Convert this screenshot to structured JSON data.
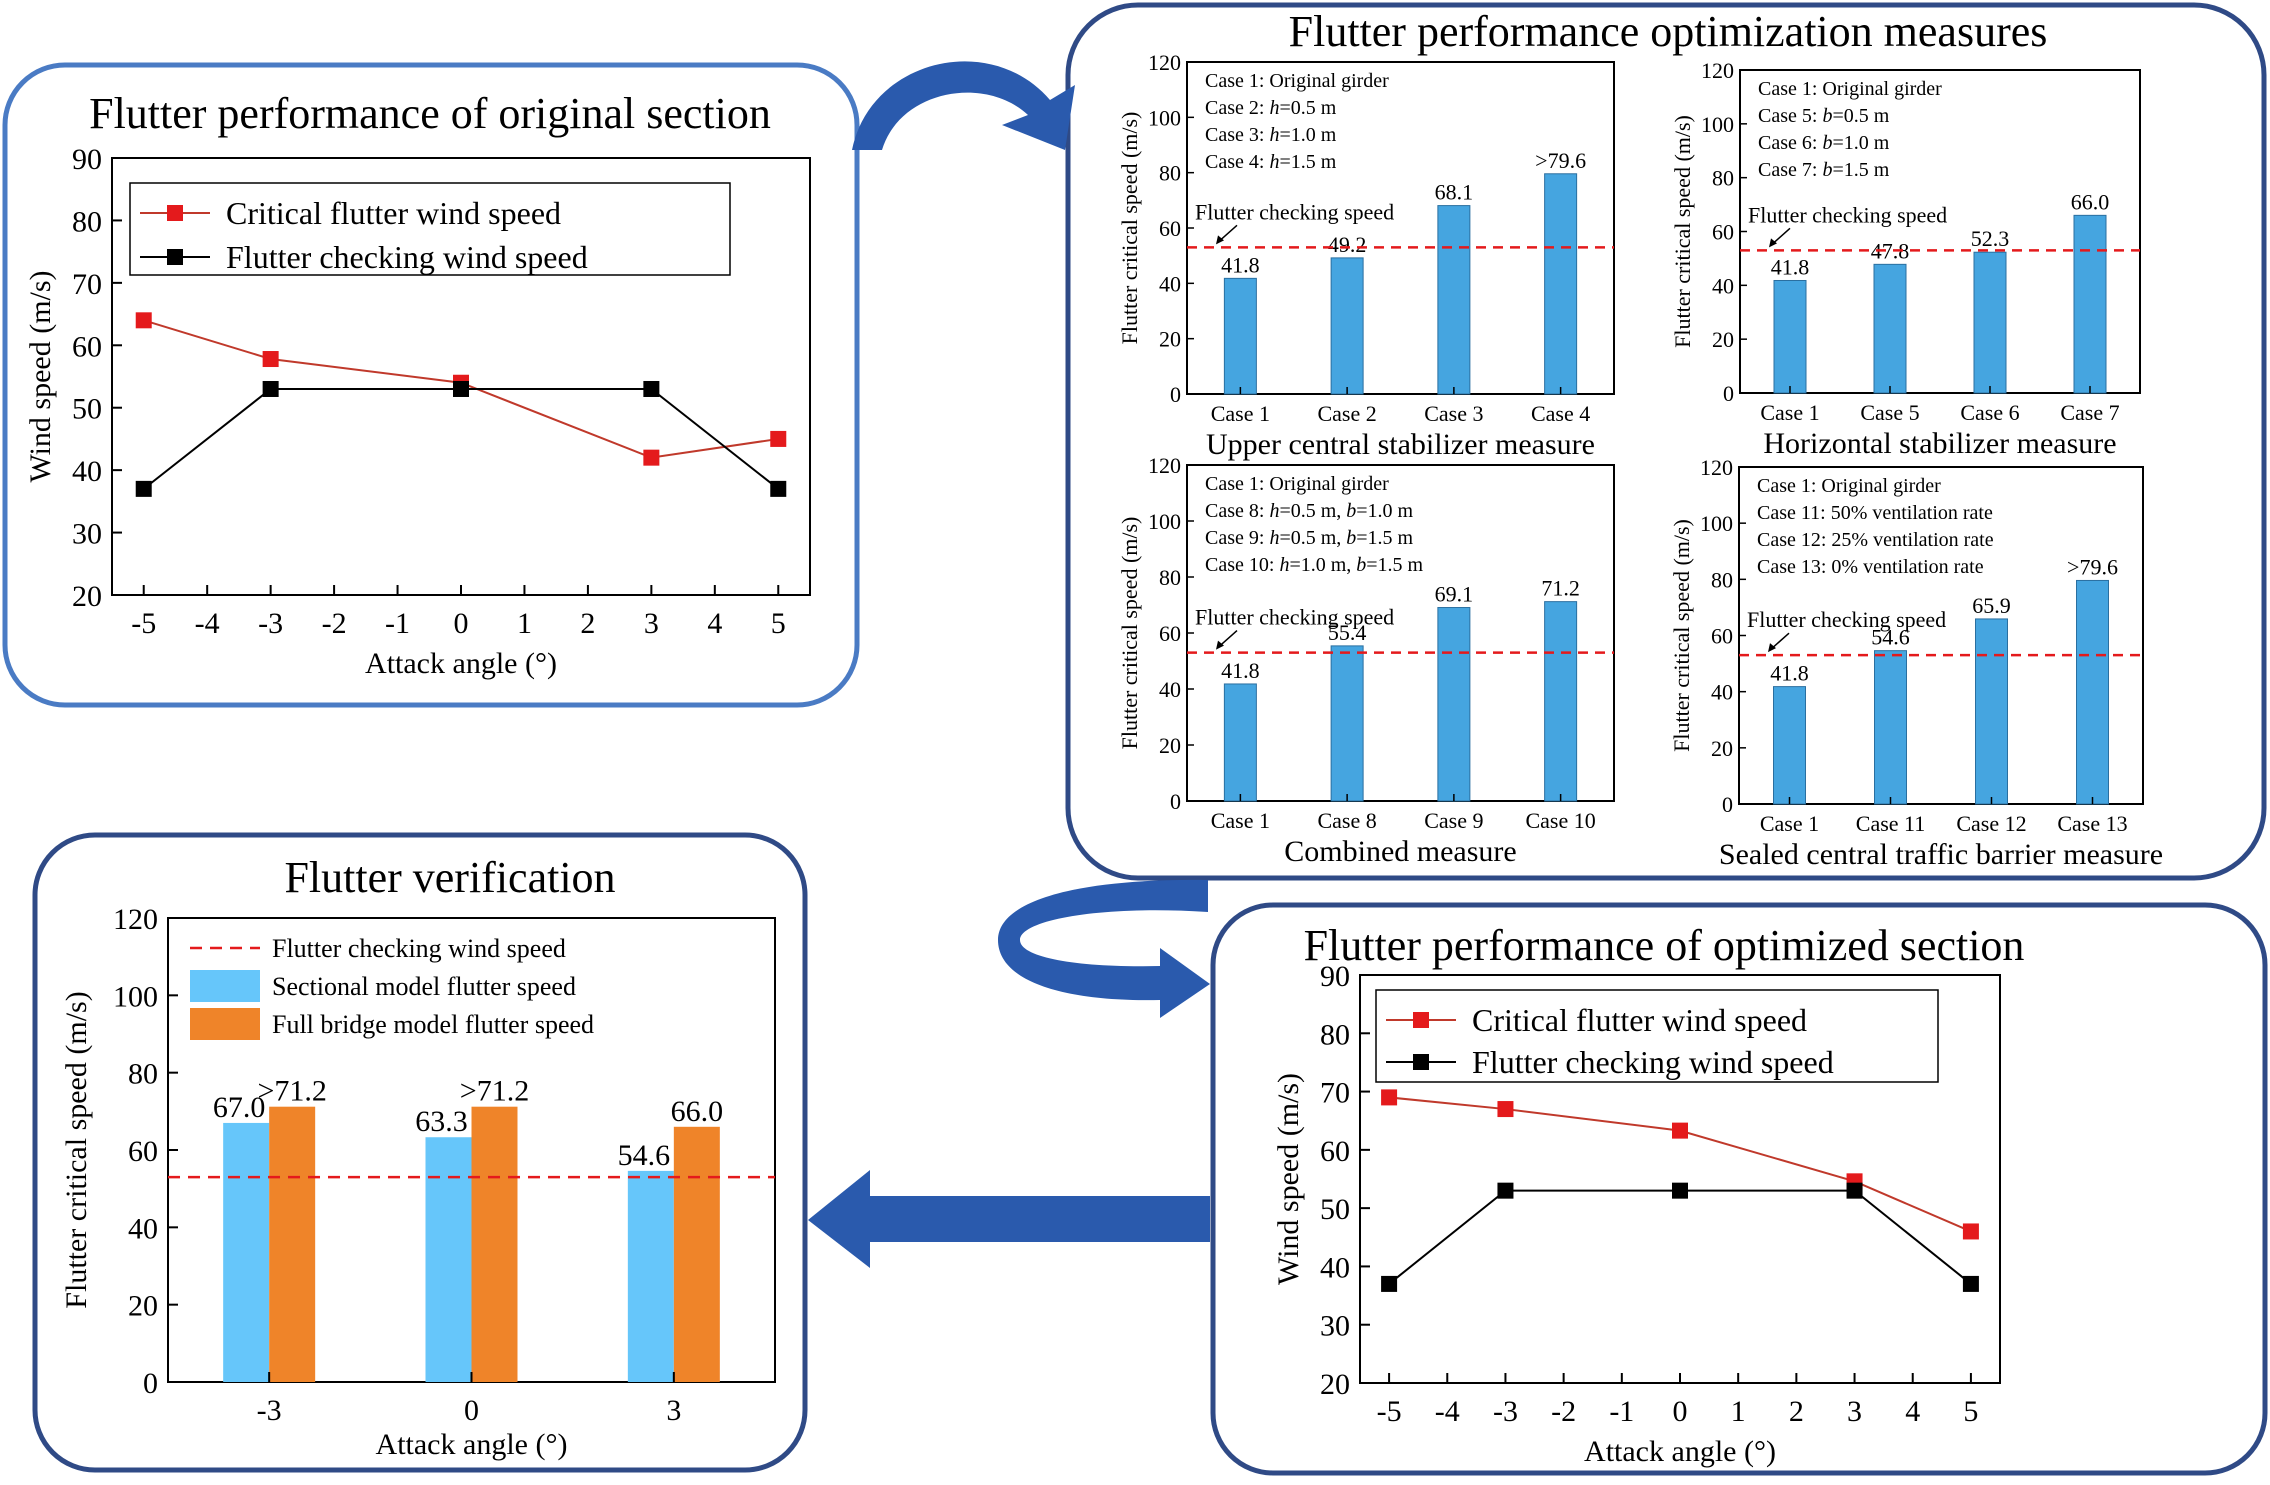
{
  "colors": {
    "frame": "#2f4a86",
    "frame_light": "#4a7bc4",
    "red": "#e41a1c",
    "black": "#000000",
    "series_line_red": "#c0392b",
    "bar_blue": "#45a5e0",
    "bar_light_blue": "#66c6fa",
    "bar_orange": "#ef8429",
    "dash_red": "#e41a1c",
    "arrow": "#2a5aad"
  },
  "panels": {
    "original": {
      "title": "Flutter performance of original section"
    },
    "optimization": {
      "title": "Flutter performance optimization measures"
    },
    "verification": {
      "title": "Flutter verification"
    },
    "optimized": {
      "title": "Flutter performance of optimized section"
    }
  },
  "chart_data": [
    {
      "id": "original",
      "type": "line",
      "xlabel": "Attack angle (°)",
      "ylabel": "Wind speed (m/s)",
      "xlim": [
        -5.5,
        5.5
      ],
      "ylim": [
        20,
        90
      ],
      "xticks": [
        -5,
        -4,
        -3,
        -2,
        -1,
        0,
        1,
        2,
        3,
        4,
        5
      ],
      "xtick_labels": [
        "-5",
        "-4",
        "-3",
        "-2",
        "-1",
        "0",
        "1",
        "2",
        "3",
        "4",
        "5"
      ],
      "yticks": [
        20,
        30,
        40,
        50,
        60,
        70,
        80,
        90
      ],
      "legend_position": "top-left",
      "series": [
        {
          "name": "Critical flutter wind speed",
          "color": "#e41a1c",
          "x": [
            -5,
            -3,
            0,
            3,
            5
          ],
          "y": [
            64,
            57.8,
            54,
            42,
            45
          ]
        },
        {
          "name": "Flutter checking wind speed",
          "color": "#000000",
          "x": [
            -5,
            -3,
            0,
            3,
            5
          ],
          "y": [
            37,
            53,
            53,
            53,
            37
          ]
        }
      ]
    },
    {
      "id": "upper-central",
      "type": "bar",
      "title": "Upper central stabilizer measure",
      "ylabel": "Flutter critical speed (m/s)",
      "ylim": [
        0,
        120
      ],
      "yticks": [
        0,
        20,
        40,
        60,
        80,
        100,
        120
      ],
      "categories": [
        "Case 1",
        "Case 2",
        "Case 3",
        "Case 4"
      ],
      "values": [
        41.8,
        49.2,
        68.1,
        79.6
      ],
      "value_labels": [
        "41.8",
        "49.2",
        "68.1",
        ">79.6"
      ],
      "checking_speed": 53,
      "checking_label": "Flutter checking speed",
      "notes": [
        "Case 1: Original girder",
        "Case 2: h=0.5 m",
        "Case 3: h=1.0 m",
        "Case 4: h=1.5 m"
      ]
    },
    {
      "id": "horizontal",
      "type": "bar",
      "title": "Horizontal stabilizer measure",
      "ylabel": "Flutter critical speed (m/s)",
      "ylim": [
        0,
        120
      ],
      "yticks": [
        0,
        20,
        40,
        60,
        80,
        100,
        120
      ],
      "categories": [
        "Case 1",
        "Case 5",
        "Case 6",
        "Case 7"
      ],
      "values": [
        41.8,
        47.8,
        52.3,
        66.0
      ],
      "value_labels": [
        "41.8",
        "47.8",
        "52.3",
        "66.0"
      ],
      "checking_speed": 53,
      "checking_label": "Flutter checking speed",
      "notes": [
        "Case 1: Original girder",
        "Case 5: b=0.5 m",
        "Case 6: b=1.0 m",
        "Case 7: b=1.5 m"
      ]
    },
    {
      "id": "combined",
      "type": "bar",
      "title": "Combined measure",
      "ylabel": "Flutter critical speed (m/s)",
      "ylim": [
        0,
        120
      ],
      "yticks": [
        0,
        20,
        40,
        60,
        80,
        100,
        120
      ],
      "categories": [
        "Case 1",
        "Case 8",
        "Case 9",
        "Case 10"
      ],
      "values": [
        41.8,
        55.4,
        69.1,
        71.2
      ],
      "value_labels": [
        "41.8",
        "55.4",
        "69.1",
        "71.2"
      ],
      "checking_speed": 53,
      "checking_label": "Flutter checking speed",
      "notes": [
        "Case 1: Original girder",
        "Case 8: h=0.5 m, b=1.0 m",
        "Case 9: h=0.5 m, b=1.5 m",
        "Case 10: h=1.0 m, b=1.5 m"
      ]
    },
    {
      "id": "sealed",
      "type": "bar",
      "title": "Sealed central traffic barrier measure",
      "ylabel": "Flutter critical speed (m/s)",
      "ylim": [
        0,
        120
      ],
      "yticks": [
        0,
        20,
        40,
        60,
        80,
        100,
        120
      ],
      "categories": [
        "Case 1",
        "Case 11",
        "Case 12",
        "Case 13"
      ],
      "values": [
        41.8,
        54.6,
        65.9,
        79.6
      ],
      "value_labels": [
        "41.8",
        "54.6",
        "65.9",
        ">79.6"
      ],
      "checking_speed": 53,
      "checking_label": "Flutter checking speed",
      "notes": [
        "Case 1: Original girder",
        "Case 11: 50% ventilation rate",
        "Case 12: 25% ventilation rate",
        "Case 13: 0% ventilation rate"
      ]
    },
    {
      "id": "verification",
      "type": "bar",
      "xlabel": "Attack angle (°)",
      "ylabel": "Flutter critical speed (m/s)",
      "ylim": [
        0,
        120
      ],
      "yticks": [
        0,
        20,
        40,
        60,
        80,
        100,
        120
      ],
      "categories": [
        "-3",
        "0",
        "3"
      ],
      "legend_position": "top-left",
      "checking_speed": 53,
      "checking_label": "Flutter checking wind speed",
      "series": [
        {
          "name": "Sectional model flutter speed",
          "color": "#66c6fa",
          "values": [
            67.0,
            63.3,
            54.6
          ],
          "value_labels": [
            "67.0",
            "63.3",
            "54.6"
          ]
        },
        {
          "name": "Full bridge model flutter speed",
          "color": "#ef8429",
          "values": [
            71.2,
            71.2,
            66.0
          ],
          "value_labels": [
            ">71.2",
            ">71.2",
            "66.0"
          ]
        }
      ]
    },
    {
      "id": "optimized",
      "type": "line",
      "xlabel": "Attack angle (°)",
      "ylabel": "Wind speed (m/s)",
      "xlim": [
        -5.5,
        5.5
      ],
      "ylim": [
        20,
        90
      ],
      "xticks": [
        -5,
        -4,
        -3,
        -2,
        -1,
        0,
        1,
        2,
        3,
        4,
        5
      ],
      "xtick_labels": [
        "-5",
        "-4",
        "-3",
        "-2",
        "-1",
        "0",
        "1",
        "2",
        "3",
        "4",
        "5"
      ],
      "yticks": [
        20,
        30,
        40,
        50,
        60,
        70,
        80,
        90
      ],
      "legend_position": "top-left",
      "series": [
        {
          "name": "Critical flutter wind speed",
          "color": "#e41a1c",
          "x": [
            -5,
            -3,
            0,
            3,
            5
          ],
          "y": [
            69,
            67,
            63.3,
            54.6,
            46
          ]
        },
        {
          "name": "Flutter checking wind speed",
          "color": "#000000",
          "x": [
            -5,
            -3,
            0,
            3,
            5
          ],
          "y": [
            37,
            53,
            53,
            53,
            37
          ]
        }
      ]
    }
  ]
}
